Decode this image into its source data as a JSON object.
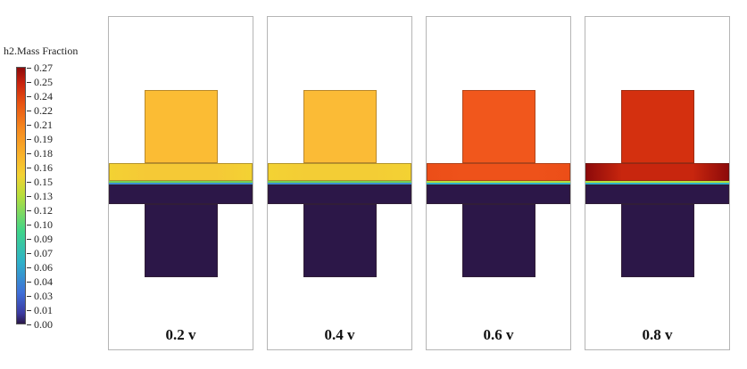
{
  "colorbar": {
    "title": "h2.Mass Fraction",
    "ticks": [
      "0.27",
      "0.25",
      "0.24",
      "0.22",
      "0.21",
      "0.19",
      "0.18",
      "0.16",
      "0.15",
      "0.13",
      "0.12",
      "0.10",
      "0.09",
      "0.07",
      "0.06",
      "0.04",
      "0.03",
      "0.01",
      "0.00"
    ],
    "colors": [
      "#2b1748",
      "#3b3aa0",
      "#3f6fd8",
      "#2fb1c9",
      "#3fd48a",
      "#b7de3c",
      "#f3d233",
      "#f9b62c",
      "#f68a1f",
      "#e85412",
      "#c8230f",
      "#8d0a0a"
    ]
  },
  "panels": [
    {
      "caption": "0.2 v",
      "upper_color": "#fbbc34",
      "membrane_color": "#f5c936",
      "membrane_edge_color": "#f3d233",
      "mass_fraction_upper": 0.175
    },
    {
      "caption": "0.4 v",
      "upper_color": "#fbbb36",
      "membrane_color": "#f3cd35",
      "membrane_edge_color": "#f3d233",
      "mass_fraction_upper": 0.175
    },
    {
      "caption": "0.6 v",
      "upper_color": "#f1571c",
      "membrane_color": "#ee521a",
      "membrane_edge_color": "#ec4e18",
      "mass_fraction_upper": 0.22
    },
    {
      "caption": "0.8 v",
      "upper_color": "#d4300f",
      "membrane_color": "#c8260e",
      "membrane_edge_color": "#8d0a0a",
      "mass_fraction_upper": 0.25
    }
  ]
}
